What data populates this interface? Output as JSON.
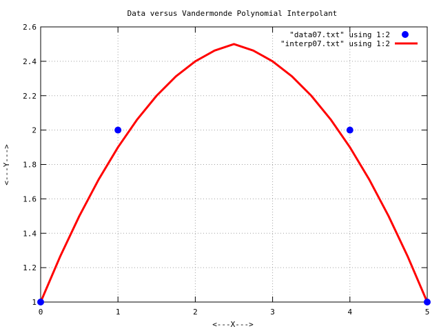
{
  "chart_data": {
    "type": "line",
    "title": "Data versus Vandermonde Polynomial Interpolant",
    "xlabel": "<---X--->",
    "ylabel": "<---Y--->",
    "xlim": [
      0,
      5
    ],
    "ylim": [
      1,
      2.6
    ],
    "xticks": [
      "0",
      "1",
      "2",
      "3",
      "4",
      "5"
    ],
    "yticks": [
      "1",
      "1.2",
      "1.4",
      "1.6",
      "1.8",
      "2",
      "2.2",
      "2.4",
      "2.6"
    ],
    "grid": true,
    "legend_position": "top-right",
    "series": [
      {
        "name": "\"data07.txt\" using 1:2",
        "style": "points",
        "color": "#0000ff",
        "x": [
          0,
          1,
          4,
          5
        ],
        "y": [
          1,
          2,
          2,
          1
        ]
      },
      {
        "name": "\"interp07.txt\" using 1:2",
        "style": "line",
        "color": "#ff0000",
        "x": [
          0,
          0.25,
          0.5,
          0.75,
          1,
          1.25,
          1.5,
          1.75,
          2,
          2.25,
          2.5,
          2.75,
          3,
          3.25,
          3.5,
          3.75,
          4,
          4.25,
          4.5,
          4.75,
          5
        ],
        "y": [
          1,
          1.2625,
          1.5,
          1.7125,
          1.9,
          2.0625,
          2.2,
          2.3125,
          2.4,
          2.4625,
          2.5,
          2.4625,
          2.4,
          2.3125,
          2.2,
          2.0625,
          1.9,
          1.7125,
          1.5,
          1.2625,
          1
        ]
      }
    ]
  }
}
